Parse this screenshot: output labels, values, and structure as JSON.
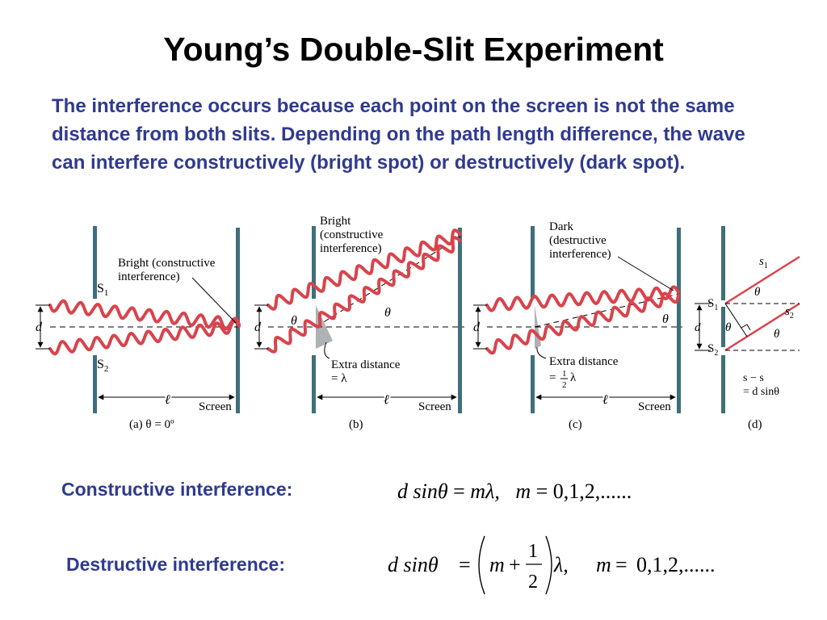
{
  "title": "Young’s Double-Slit Experiment",
  "intro": "The interference occurs because each point on the screen is not the same distance from both slits. Depending on the path length difference, the wave can interfere constructively (bright spot) or destructively (dark spot).",
  "panels": {
    "a": {
      "annotation_line1": "Bright (constructive",
      "annotation_line2": "interference)",
      "s1": "S",
      "s2": "S",
      "d": "d",
      "ell": "ℓ",
      "screen": "Screen",
      "caption": "(a) θ = 0º"
    },
    "b": {
      "annotation_line1": "Bright",
      "annotation_line2": "(constructive",
      "annotation_line3": "interference)",
      "theta_left": "θ",
      "theta_right": "θ",
      "d": "d",
      "extra_line1": "Extra distance",
      "extra_line2": "= λ",
      "ell": "ℓ",
      "screen": "Screen",
      "caption": "(b)"
    },
    "c": {
      "annotation_line1": "Dark",
      "annotation_line2": "(destructive",
      "annotation_line3": "interference)",
      "theta_right": "θ",
      "d": "d",
      "extra_line1": "Extra distance",
      "extra_prefix": "=",
      "extra_num": "1",
      "extra_den": "2",
      "extra_suffix": "λ",
      "ell": "ℓ",
      "screen": "Screen",
      "caption": "(c)"
    },
    "d": {
      "s1_top": "s",
      "s2_right": "s",
      "theta_a": "θ",
      "theta_b": "θ",
      "theta_c": "θ",
      "S1": "S",
      "S2": "S",
      "d": "d",
      "diff_line1": "s  − s",
      "diff_line2": "= d sinθ",
      "caption": "(d)"
    }
  },
  "constructive": {
    "label": "Constructive interference:",
    "lhs": "d sin",
    "theta": "θ",
    "eq": "=",
    "rhs": "mλ,",
    "m": "m",
    "eq2": "=",
    "values": "0,1,2,......"
  },
  "destructive": {
    "label": "Destructive interference:",
    "lhs": "d sin",
    "theta": "θ",
    "eq": "=",
    "m": "m",
    "plus": "+",
    "num": "1",
    "den": "2",
    "lambda": "λ,",
    "m2": "m",
    "eq2": "=",
    "values": "0,1,2,......"
  },
  "colors": {
    "heading_blue": "#2f3a8f",
    "wave_red": "#d9434c",
    "barrier_teal": "#3f6f7a"
  }
}
